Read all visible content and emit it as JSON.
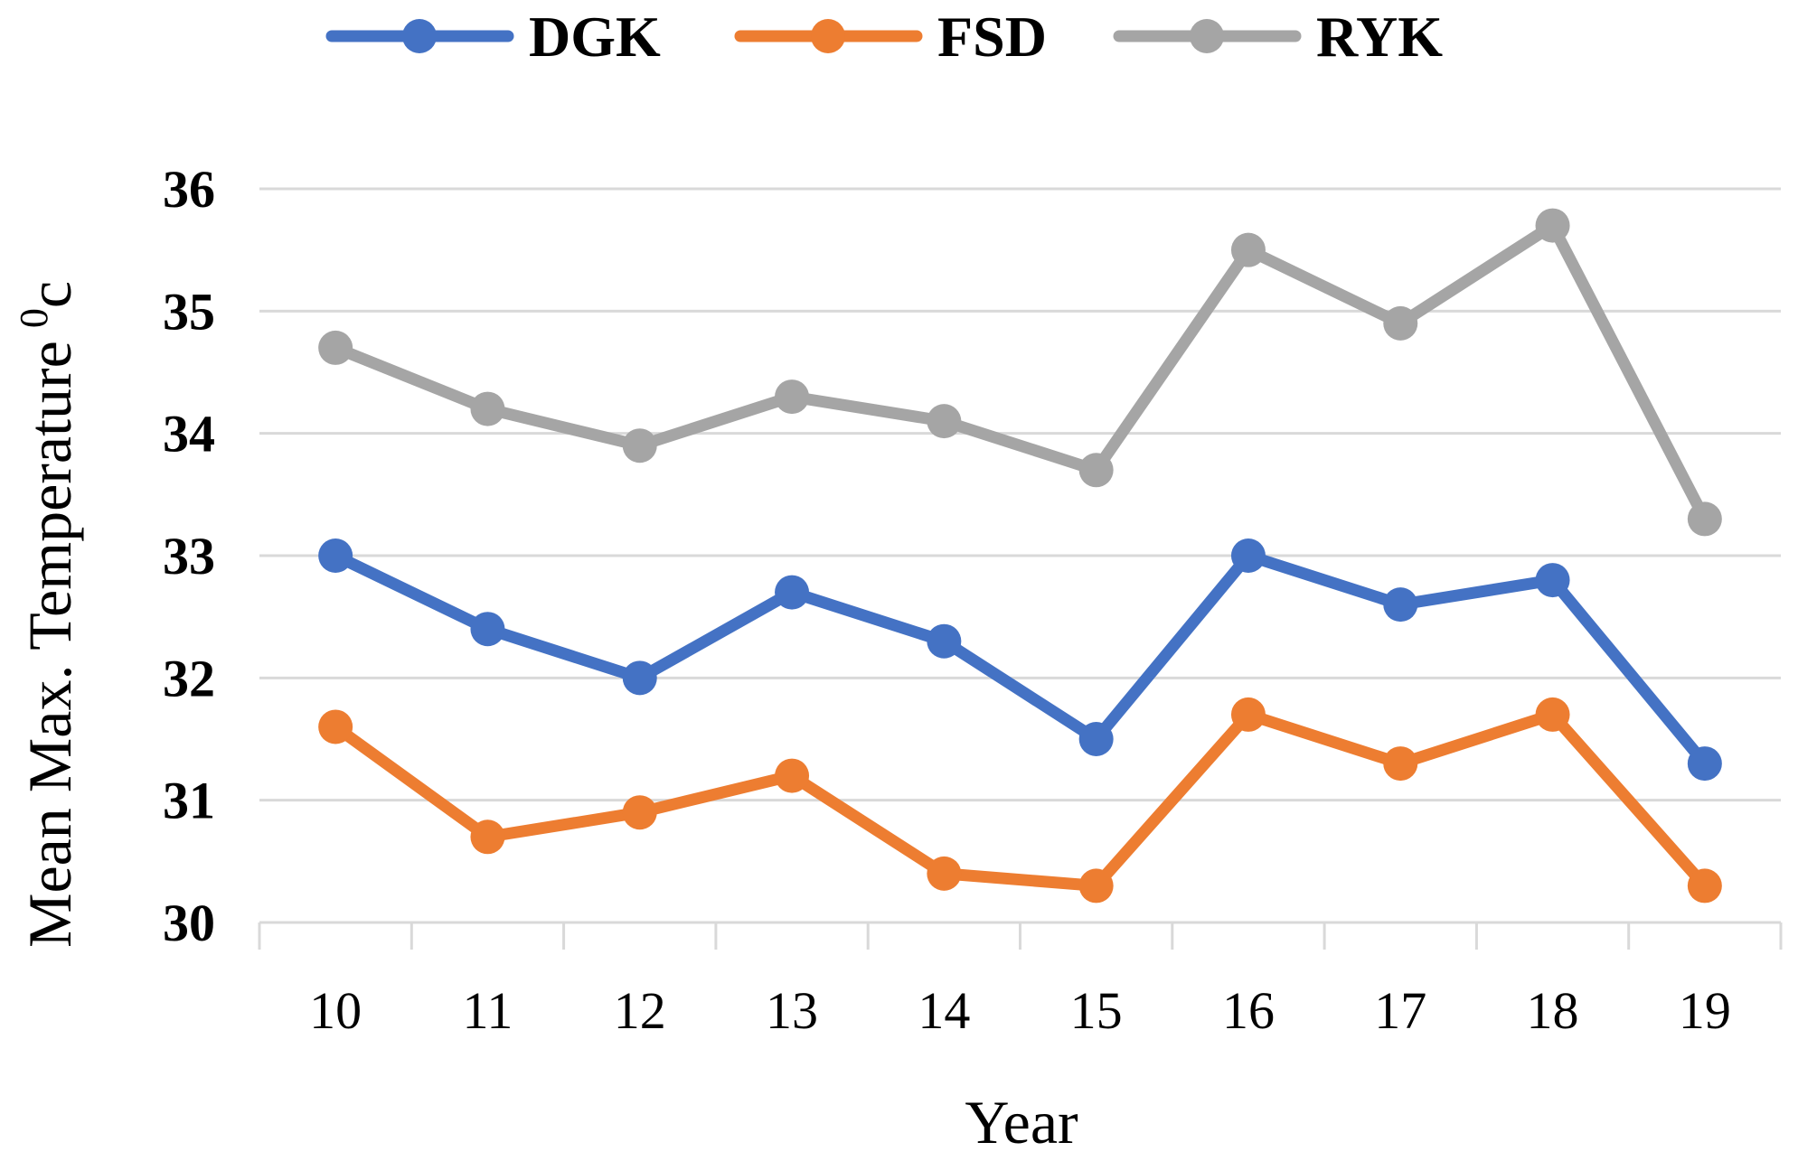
{
  "chart_data": {
    "type": "line",
    "title": "",
    "xlabel": "Year",
    "ylabel": "Mean Max. Temperature",
    "ylabel_sup": "0",
    "ylabel_unit": "c",
    "categories": [
      "10",
      "11",
      "12",
      "13",
      "14",
      "15",
      "16",
      "17",
      "18",
      "19"
    ],
    "ylim": [
      30,
      36
    ],
    "yticks": [
      "30",
      "31",
      "32",
      "33",
      "34",
      "35",
      "36"
    ],
    "grid": true,
    "legend_position": "top-center",
    "series": [
      {
        "name": "DGK",
        "color": "#4472c4",
        "values": [
          33.0,
          32.4,
          32.0,
          32.7,
          32.3,
          31.5,
          33.0,
          32.6,
          32.8,
          31.3
        ]
      },
      {
        "name": "FSD",
        "color": "#ed7d31",
        "values": [
          31.6,
          30.7,
          30.9,
          31.2,
          30.4,
          30.3,
          31.7,
          31.3,
          31.7,
          30.3
        ]
      },
      {
        "name": "RYK",
        "color": "#a5a5a5",
        "values": [
          34.7,
          34.2,
          33.9,
          34.3,
          34.1,
          33.7,
          35.5,
          34.9,
          35.7,
          33.3
        ]
      }
    ]
  }
}
